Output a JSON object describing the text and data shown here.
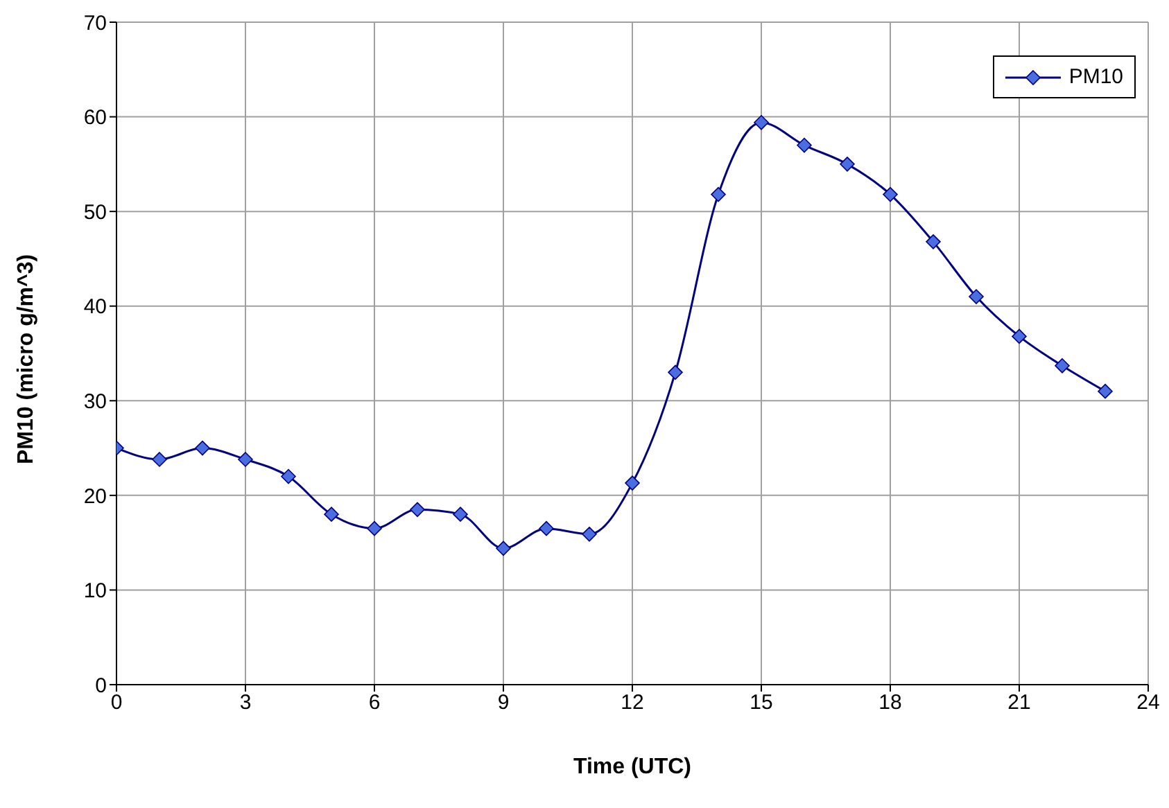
{
  "chart_data": {
    "type": "line",
    "xlabel": "Time (UTC)",
    "ylabel": "PM10 (micro g/m^3)",
    "x": [
      0,
      1,
      2,
      3,
      4,
      5,
      6,
      7,
      8,
      9,
      10,
      11,
      12,
      13,
      14,
      15,
      16,
      17,
      18,
      19,
      20,
      21,
      22,
      23
    ],
    "series": [
      {
        "name": "PM10",
        "color": "#000080",
        "values": [
          25,
          23.8,
          25,
          23.8,
          22,
          18,
          16.5,
          18.5,
          18,
          14.4,
          16.5,
          15.9,
          21.3,
          33,
          51.8,
          59.4,
          57,
          55,
          51.8,
          46.8,
          41,
          36.8,
          33.7,
          31
        ]
      }
    ],
    "xlim": [
      0,
      24
    ],
    "xticks": [
      0,
      3,
      6,
      9,
      12,
      15,
      18,
      21,
      24
    ],
    "ylim": [
      0,
      70
    ],
    "yticks": [
      0,
      10,
      20,
      30,
      40,
      50,
      60,
      70
    ],
    "grid": true,
    "legend": "top right",
    "marker": "diamond",
    "line_style": "solid"
  }
}
